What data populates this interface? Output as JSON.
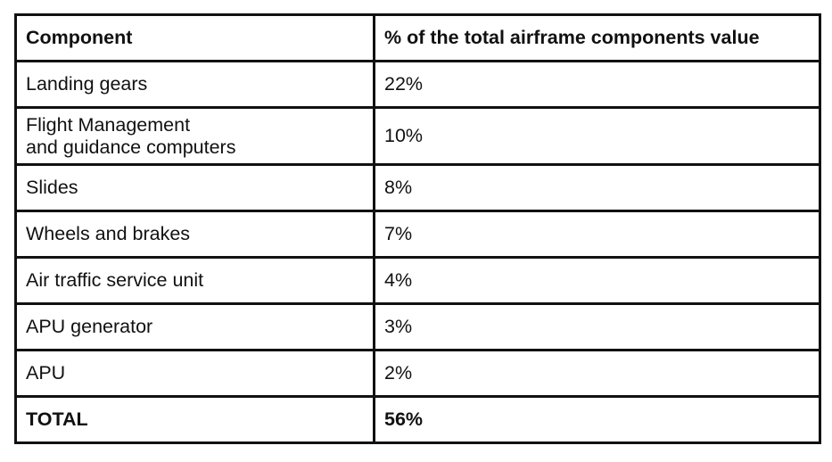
{
  "table": {
    "headers": [
      "Component",
      "% of the total airframe components value"
    ],
    "rows": [
      {
        "component": "Landing gears",
        "percent": "22%"
      },
      {
        "component_line1": "Flight Management",
        "component_line2": "and guidance computers",
        "percent": "10%"
      },
      {
        "component": "Slides",
        "percent": "8%"
      },
      {
        "component": "Wheels and brakes",
        "percent": "7%"
      },
      {
        "component": "Air traffic service unit",
        "percent": "4%"
      },
      {
        "component": "APU generator",
        "percent": "3%"
      },
      {
        "component": "APU",
        "percent": "2%"
      }
    ],
    "total": {
      "label": "TOTAL",
      "percent": "56%"
    }
  }
}
